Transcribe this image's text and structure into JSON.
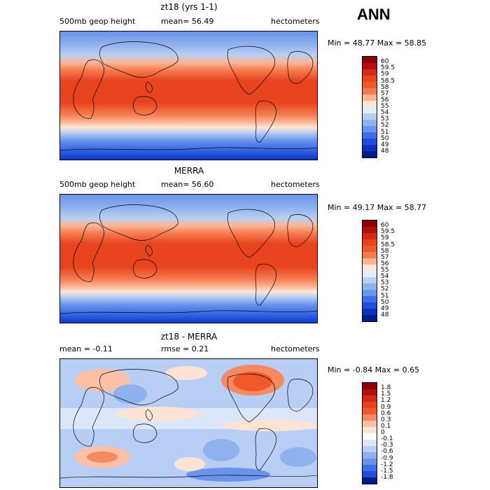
{
  "figure": {
    "season": "ANN"
  },
  "panels": [
    {
      "title": "zt18 (yrs 1-1)",
      "left_label": "500mb geop height",
      "center_label": "mean=  56.49",
      "units": "hectometers",
      "minmax": "Min =  48.77 Max =  58.85",
      "palette": "full",
      "labels": [
        "60",
        "59.5",
        "59",
        "58.5",
        "58",
        "57",
        "56",
        "55",
        "54",
        "53",
        "52",
        "51",
        "50",
        "49",
        "48"
      ]
    },
    {
      "title": "MERRA",
      "left_label": "500mb geop height",
      "center_label": "mean=  56.60",
      "units": "hectometers",
      "minmax": "Min =  49.17 Max =  58.77",
      "palette": "full",
      "labels": [
        "60",
        "59.5",
        "59",
        "58.5",
        "58",
        "57",
        "56",
        "55",
        "54",
        "53",
        "52",
        "51",
        "50",
        "49",
        "48"
      ]
    },
    {
      "title": "zt18 - MERRA",
      "left_label": "mean =  -0.11",
      "center_label": "rmse =    0.21",
      "units": "hectometers",
      "minmax": "Min =  -0.84 Max =   0.65",
      "palette": "diff",
      "labels": [
        "1.8",
        "1.5",
        "1.2",
        "0.9",
        "0.6",
        "0.3",
        "0.1",
        "0",
        "-0.1",
        "-0.3",
        "-0.6",
        "-0.9",
        "-1.2",
        "-1.5",
        "-1.8"
      ]
    }
  ],
  "colors": {
    "full": [
      "#8b0000",
      "#b01010",
      "#d42a1a",
      "#e8441f",
      "#f05a2a",
      "#f57b4f",
      "#fbb595",
      "#fde8d8",
      "#e3edf9",
      "#b9cff2",
      "#8fb1ee",
      "#6a94ec",
      "#3f6fe6",
      "#1f4fd8",
      "#0d31b8",
      "#021b8a"
    ],
    "diff": [
      "#8b0000",
      "#b01010",
      "#d42a1a",
      "#e8441f",
      "#f05a2a",
      "#f58a62",
      "#fbc0a5",
      "#fde3d3",
      "#ffffff",
      "#dbe6f8",
      "#b8cef4",
      "#8fb1ee",
      "#6a94ec",
      "#3f6fe6",
      "#1f4fd8",
      "#021b8a"
    ]
  }
}
